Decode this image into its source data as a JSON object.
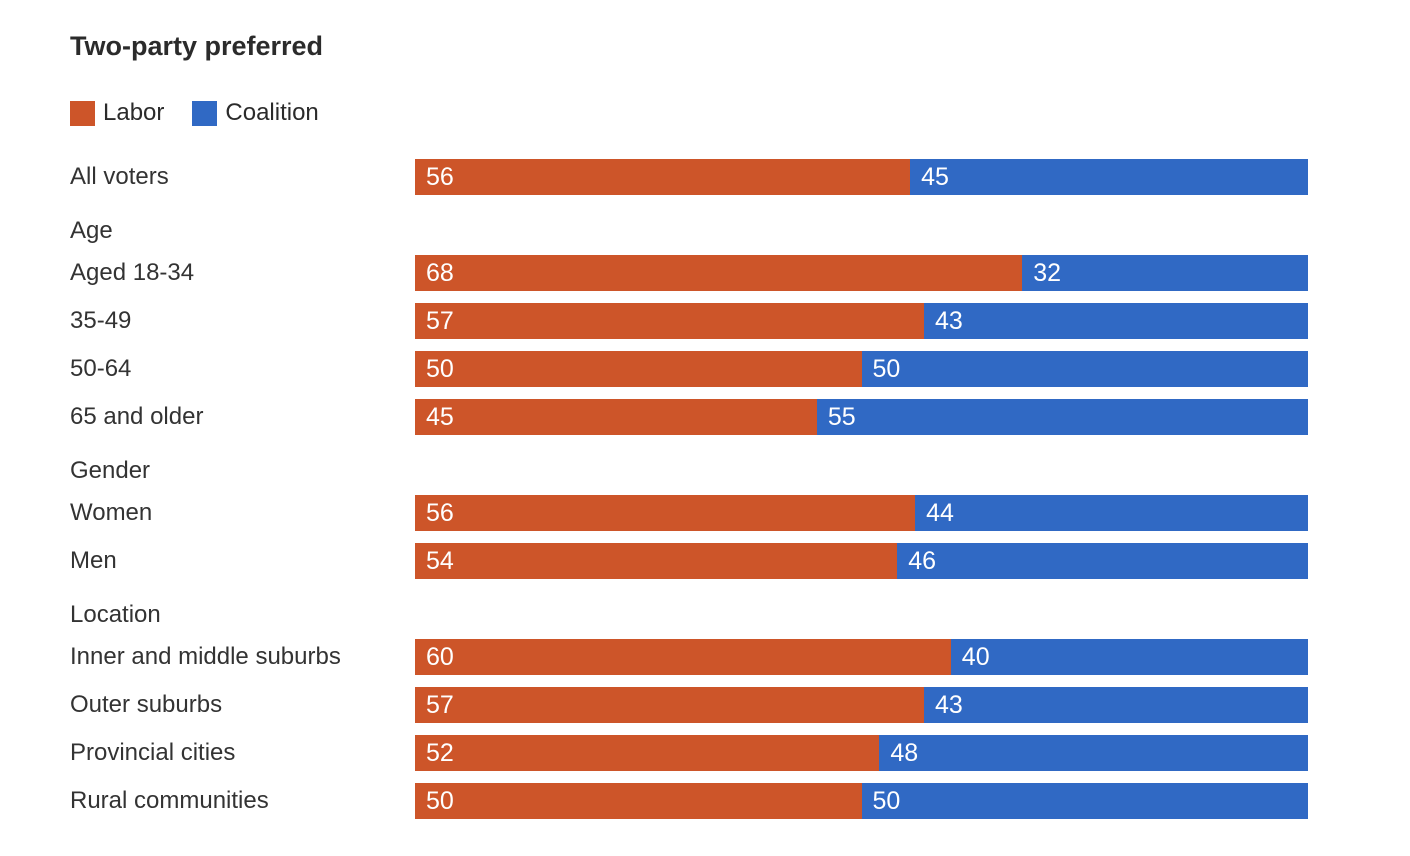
{
  "chart_data": {
    "type": "bar",
    "variant": "horizontal-stacked",
    "title": "Two-party preferred",
    "colors": {
      "labor": "#cd5529",
      "coalition": "#3069c4"
    },
    "legend": [
      {
        "name": "Labor",
        "color_key": "labor"
      },
      {
        "name": "Coalition",
        "color_key": "coalition"
      }
    ],
    "series_names": [
      "Labor",
      "Coalition"
    ],
    "groups": [
      {
        "header": "",
        "rows": [
          {
            "label": "All voters",
            "values": [
              56,
              45
            ]
          }
        ]
      },
      {
        "header": "Age",
        "rows": [
          {
            "label": "Aged 18-34",
            "values": [
              68,
              32
            ]
          },
          {
            "label": "35-49",
            "values": [
              57,
              43
            ]
          },
          {
            "label": "50-64",
            "values": [
              50,
              50
            ]
          },
          {
            "label": "65 and older",
            "values": [
              45,
              55
            ]
          }
        ]
      },
      {
        "header": "Gender",
        "rows": [
          {
            "label": "Women",
            "values": [
              56,
              44
            ]
          },
          {
            "label": "Men",
            "values": [
              54,
              46
            ]
          }
        ]
      },
      {
        "header": "Location",
        "rows": [
          {
            "label": "Inner and middle suburbs",
            "values": [
              60,
              40
            ]
          },
          {
            "label": "Outer suburbs",
            "values": [
              57,
              43
            ]
          },
          {
            "label": "Provincial cities",
            "values": [
              52,
              48
            ]
          },
          {
            "label": "Rural communities",
            "values": [
              50,
              50
            ]
          }
        ]
      }
    ]
  }
}
